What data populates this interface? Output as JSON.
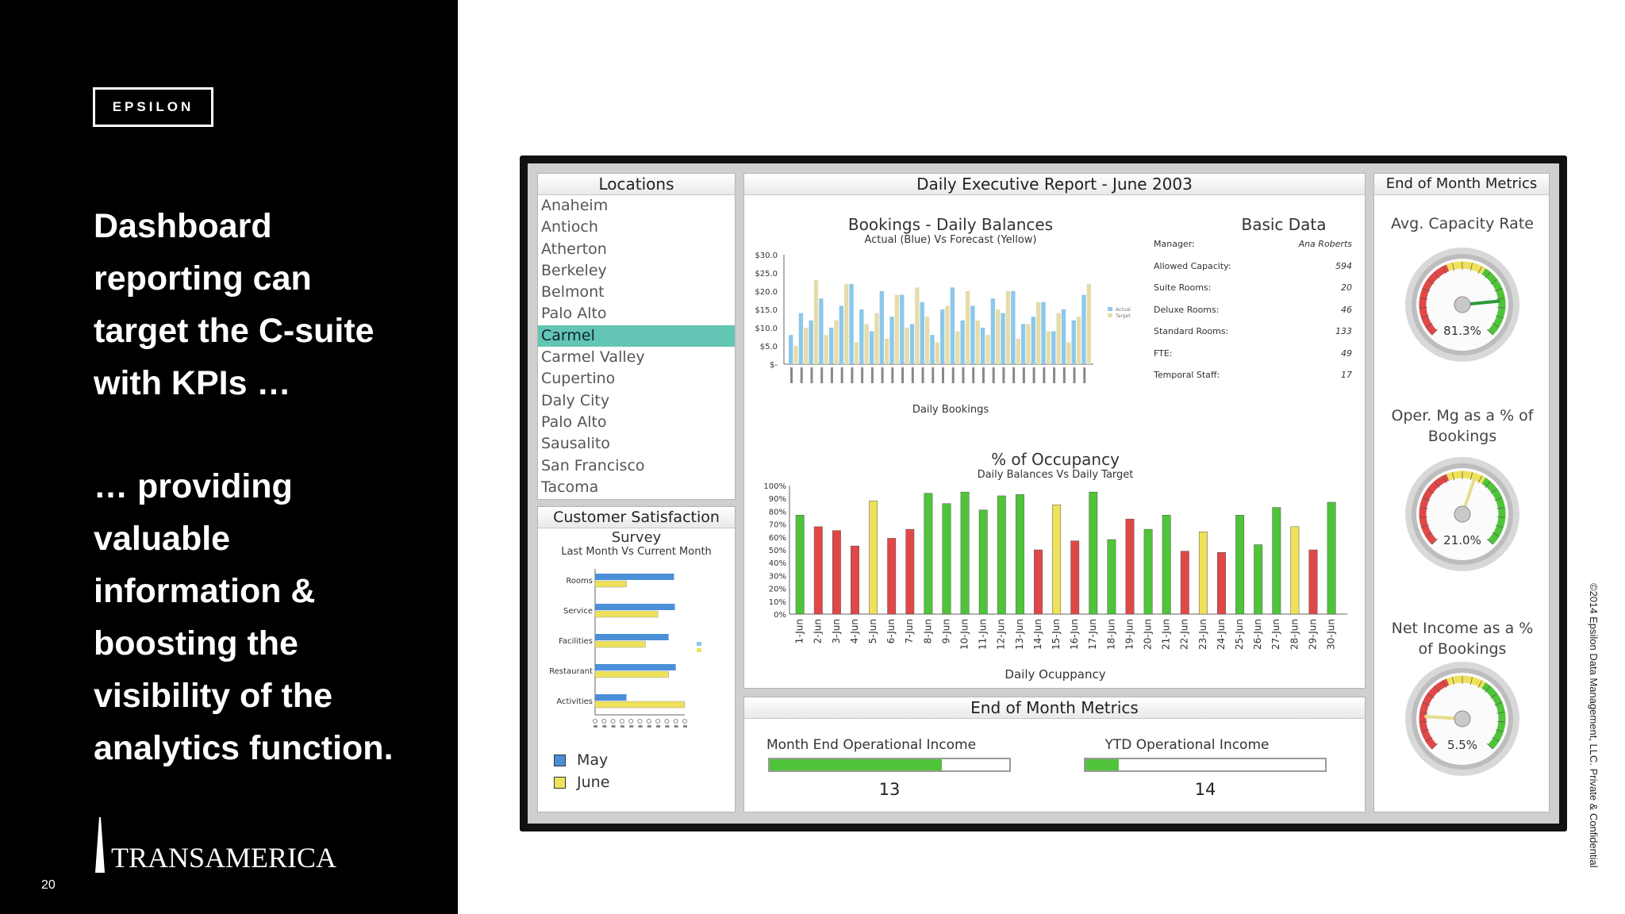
{
  "slide": {
    "logo": "EPSILON",
    "headline_lines": [
      "Dashboard",
      "reporting can",
      "target the C-suite",
      "with KPIs …"
    ],
    "sub_lines": [
      "… providing",
      "valuable",
      "information &",
      "boosting the",
      "visibility of the",
      "analytics function."
    ],
    "brand": "TRANSAMERICA",
    "page_number": "20",
    "copyright": "©2014 Epsilon Data Management, LLC. Private & Confidential"
  },
  "colors": {
    "green": "#4fc43a",
    "red": "#e04848",
    "yellow": "#efe25a",
    "blue": "#8cc8ea",
    "tan": "#e4dcaa",
    "selection": "#63c6b4"
  },
  "locations": {
    "title": "Locations",
    "items": [
      "Anaheim",
      "Antioch",
      "Atherton",
      "Berkeley",
      "Belmont",
      "Palo Alto",
      "Carmel",
      "Carmel Valley",
      "Cupertino",
      "Daly City",
      "Palo Alto",
      "Sausalito",
      "San Francisco",
      "Tacoma"
    ],
    "selected": "Carmel"
  },
  "survey": {
    "title": "Customer Satisfaction",
    "subtitle": "Survey",
    "caption": "Last Month Vs Current Month",
    "legend": [
      "May",
      "June"
    ]
  },
  "report": {
    "title": "Daily Executive Report - June 2003",
    "bookings_title": "Bookings - Daily Balances",
    "bookings_subtitle": "Actual (Blue) Vs Forecast (Yellow)",
    "bookings_xlabel": "Daily Bookings",
    "occupancy_title": "% of Occupancy",
    "occupancy_subtitle": "Daily Balances Vs Daily Target",
    "occupancy_xlabel": "Daily Ocuppancy"
  },
  "basic_data": {
    "title": "Basic Data",
    "rows": [
      {
        "label": "Manager:",
        "value": "Ana Roberts"
      },
      {
        "label": "Allowed Capacity:",
        "value": "594"
      },
      {
        "label": "Suite Rooms:",
        "value": "20"
      },
      {
        "label": "Deluxe Rooms:",
        "value": "46"
      },
      {
        "label": "Standard Rooms:",
        "value": "133"
      },
      {
        "label": "FTE:",
        "value": "49"
      },
      {
        "label": "Temporal Staff:",
        "value": "17"
      }
    ]
  },
  "eom_bottom": {
    "title": "End of Month Metrics",
    "metrics": [
      {
        "label": "Month End Operational Income",
        "value": "13",
        "fill": 0.72
      },
      {
        "label": "YTD Operational Income",
        "value": "14",
        "fill": 0.14
      }
    ]
  },
  "eom_side": {
    "title": "End of Month Metrics",
    "gauges": [
      {
        "label": "Avg. Capacity Rate",
        "value": "81.3%",
        "pct": 81.3
      },
      {
        "label": "Oper. Mg as a % of Bookings",
        "value": "21.0%",
        "pct": 57
      },
      {
        "label": "Net Income as a % of Bookings",
        "value": "5.5%",
        "pct": 18
      }
    ]
  },
  "chart_data": [
    {
      "type": "bar",
      "title": "Bookings - Daily Balances",
      "subtitle": "Actual (Blue) Vs Forecast (Yellow)",
      "xlabel": "Daily Bookings",
      "ylabel": "",
      "ylim": [
        0,
        30
      ],
      "yticks": [
        "$-",
        "$5.0",
        "$10.0",
        "$15.0",
        "$20.0",
        "$25.0",
        "$30.0"
      ],
      "legend": [
        "Actual",
        "Target"
      ],
      "series": [
        {
          "name": "Actual",
          "values": [
            8,
            14,
            12,
            18,
            10,
            16,
            22,
            15,
            9,
            20,
            13,
            19,
            11,
            17,
            8,
            15,
            21,
            12,
            16,
            10,
            18,
            14,
            20,
            11,
            13,
            17,
            9,
            15,
            12,
            19
          ]
        },
        {
          "name": "Target",
          "values": [
            5,
            10,
            23,
            8,
            12,
            22,
            6,
            11,
            14,
            7,
            19,
            10,
            21,
            13,
            6,
            16,
            9,
            20,
            12,
            8,
            15,
            20,
            7,
            11,
            17,
            9,
            14,
            6,
            13,
            22
          ]
        }
      ]
    },
    {
      "type": "bar",
      "title": "% of Occupancy",
      "subtitle": "Daily Balances Vs Daily Target",
      "xlabel": "Daily Ocuppancy",
      "ylabel": "",
      "ylim": [
        0,
        100
      ],
      "yticks": [
        "0%",
        "10%",
        "20%",
        "30%",
        "40%",
        "50%",
        "60%",
        "70%",
        "80%",
        "90%",
        "100%"
      ],
      "categories": [
        "1-Jun",
        "2-Jun",
        "3-Jun",
        "4-Jun",
        "5-Jun",
        "6-Jun",
        "7-Jun",
        "8-Jun",
        "9-Jun",
        "10-Jun",
        "11-Jun",
        "12-Jun",
        "13-Jun",
        "14-Jun",
        "15-Jun",
        "16-Jun",
        "17-Jun",
        "18-Jun",
        "19-Jun",
        "20-Jun",
        "21-Jun",
        "22-Jun",
        "23-Jun",
        "24-Jun",
        "25-Jun",
        "26-Jun",
        "27-Jun",
        "28-Jun",
        "29-Jun",
        "30-Jun"
      ],
      "values": [
        77,
        68,
        65,
        53,
        88,
        59,
        66,
        94,
        86,
        95,
        81,
        92,
        93,
        50,
        85,
        57,
        95,
        58,
        74,
        66,
        77,
        49,
        64,
        48,
        77,
        54,
        83,
        68,
        50,
        87
      ],
      "bar_status": [
        "green",
        "red",
        "red",
        "red",
        "yellow",
        "red",
        "red",
        "green",
        "green",
        "green",
        "green",
        "green",
        "green",
        "red",
        "yellow",
        "red",
        "green",
        "green",
        "red",
        "green",
        "green",
        "red",
        "yellow",
        "red",
        "green",
        "green",
        "green",
        "yellow",
        "red",
        "green"
      ]
    },
    {
      "type": "bar",
      "title": "Customer Satisfaction",
      "subtitle": "Last Month Vs Current Month",
      "orientation": "horizontal",
      "categories": [
        "Rooms",
        "Service",
        "Facilities",
        "Restaurant",
        "Activities"
      ],
      "xlim": [
        0,
        10
      ],
      "series": [
        {
          "name": "May",
          "values": [
            8.8,
            8.9,
            8.2,
            9.0,
            3.5
          ]
        },
        {
          "name": "June",
          "values": [
            3.5,
            7.0,
            5.6,
            8.2,
            10.0
          ]
        }
      ]
    }
  ]
}
